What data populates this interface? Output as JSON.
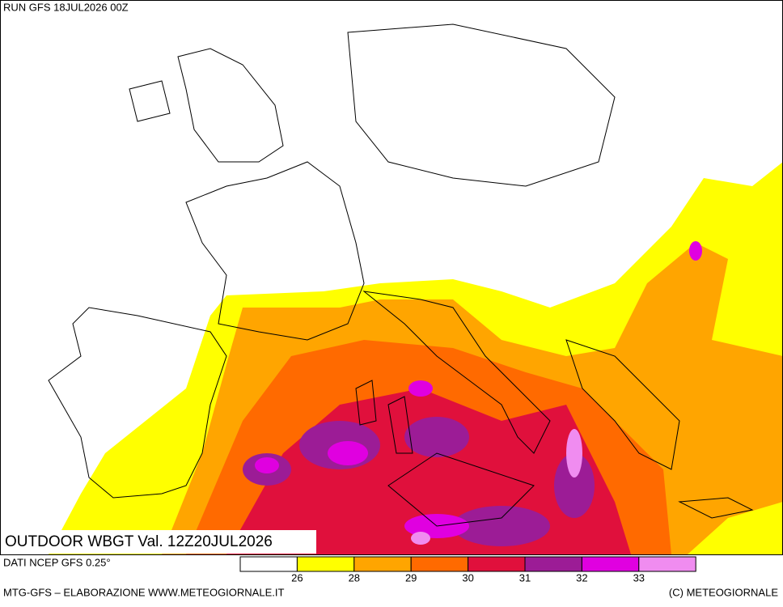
{
  "header": {
    "run": "RUN GFS 18JUL2026 00Z"
  },
  "map": {
    "title": "OUTDOOR WBGT Val. 12Z20JUL2026"
  },
  "legend": {
    "source": "DATI NCEP GFS 0.25°",
    "colors": [
      "#ffffff",
      "#ffff00",
      "#ffa500",
      "#ff6a00",
      "#e0103c",
      "#9c1c96",
      "#e000e0",
      "#f08cf0"
    ],
    "labels": [
      26,
      28,
      29,
      30,
      31,
      32,
      33
    ]
  },
  "footer": {
    "left": "MTG-GFS – ELABORAZIONE WWW.METEOGIORNALE.IT",
    "right": "(C) METEOGIORNALE"
  }
}
